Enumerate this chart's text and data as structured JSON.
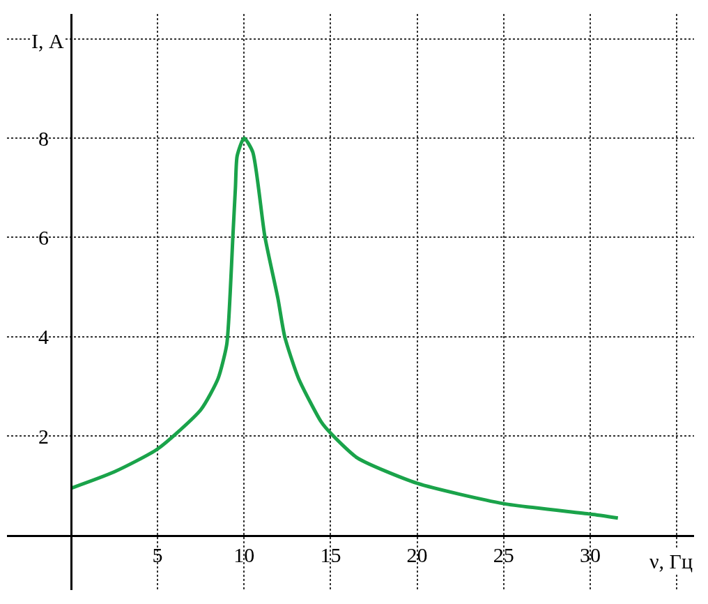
{
  "chart_data": {
    "type": "line",
    "xlabel": "ν, Гц",
    "ylabel": "I, А",
    "x": [
      0,
      2.5,
      5,
      7.5,
      8.5,
      9,
      9.2,
      9.35,
      9.5,
      9.6,
      10,
      10.5,
      11.2,
      11.95,
      12.35,
      13.15,
      14.45,
      15,
      16.55,
      20,
      25,
      30,
      31.6
    ],
    "series": [
      {
        "color": "#1aa34a",
        "values": [
          0.95,
          1.28,
          1.74,
          2.53,
          3.16,
          3.85,
          4.9,
          6.0,
          7.0,
          7.64,
          8.0,
          7.72,
          6.02,
          4.78,
          4.0,
          3.16,
          2.29,
          2.06,
          1.56,
          1.05,
          0.64,
          0.43,
          0.35
        ]
      }
    ],
    "xlim": [
      -3.7,
      36
    ],
    "ylim": [
      -1.1,
      10.5
    ],
    "xticks": [
      {
        "value": 0,
        "label": null
      },
      5,
      10,
      15,
      20,
      25,
      30,
      {
        "value": 35,
        "label": null
      }
    ],
    "yticks": [
      {
        "value": 0,
        "label": null
      },
      2,
      4,
      6,
      8,
      {
        "value": 10,
        "label": null
      }
    ],
    "grid": true,
    "line_style": "solid",
    "marker": "none"
  }
}
